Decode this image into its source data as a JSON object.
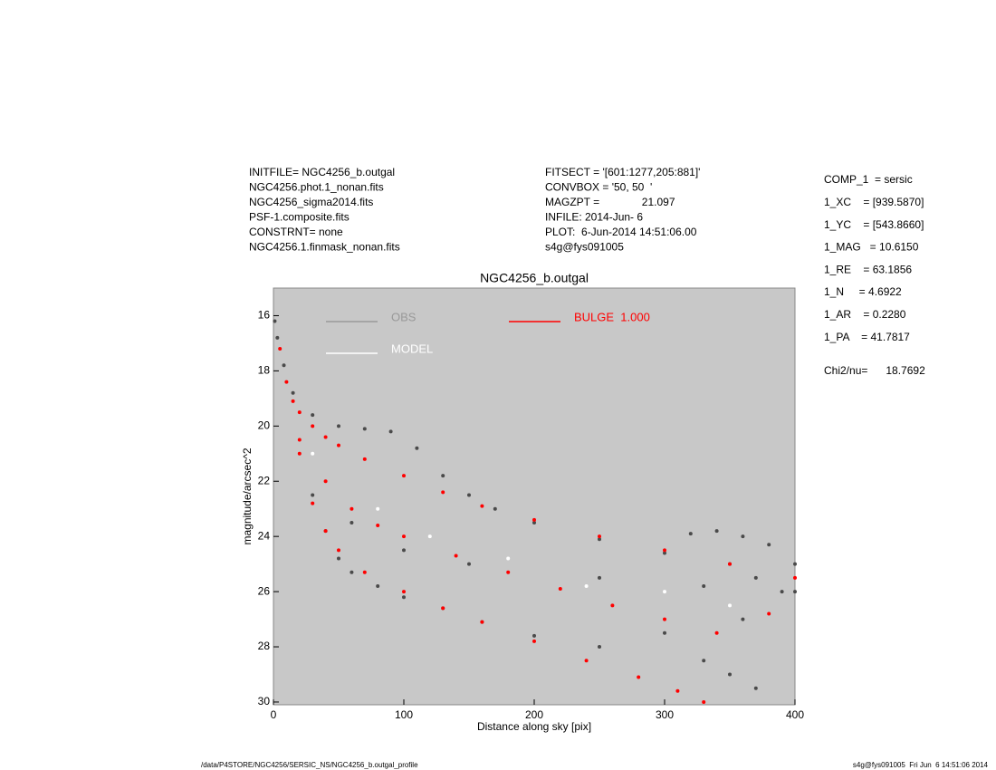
{
  "header": {
    "left_lines": [
      "INITFILE= NGC4256_b.outgal",
      "NGC4256.phot.1_nonan.fits",
      "NGC4256_sigma2014.fits",
      "PSF-1.composite.fits",
      "CONSTRNT= none",
      "NGC4256.1.finmask_nonan.fits"
    ],
    "middle_lines": [
      "FITSECT = '[601:1277,205:881]'",
      "CONVBOX = '50, 50  '",
      "MAGZPT =              21.097",
      "INFILE: 2014-Jun- 6",
      "PLOT:  6-Jun-2014 14:51:06.00",
      "s4g@fys091005"
    ],
    "right_lines": [
      "COMP_1  = sersic",
      "1_XC    = [939.5870]",
      "1_YC    = [543.8660]",
      "1_MAG   = 10.6150",
      "1_RE    = 63.1856",
      "1_N     = 4.6922",
      "1_AR    = 0.2280",
      "1_PA    = 41.7817"
    ],
    "chi2": "Chi2/nu=      18.7692"
  },
  "footer": {
    "left": "/data/P4STORE/NGC4256/SERSIC_NS/NGC4256_b.outgal_profile",
    "right": "s4g@fys091005  Fri Jun  6 14:51:06 2014"
  },
  "chart_data": {
    "type": "scatter",
    "title": "NGC4256_b.outgal",
    "xlabel": "Distance along sky [pix]",
    "ylabel": "magnitude/arcsec^2",
    "xlim": [
      0,
      400
    ],
    "ylim": [
      30.1,
      15
    ],
    "xticks": [
      0,
      100,
      200,
      300,
      400
    ],
    "yticks": [
      16,
      18,
      20,
      22,
      24,
      26,
      28,
      30
    ],
    "background": "#c8c8c8",
    "series": [
      {
        "name": "OBS",
        "color": "#4a4a4a",
        "x": [
          1,
          3,
          8,
          15,
          30,
          50,
          70,
          90,
          110,
          130,
          150,
          170,
          200,
          250,
          300,
          350,
          400,
          380,
          360,
          340,
          320,
          30,
          40,
          50,
          60,
          80,
          100,
          130,
          160,
          200,
          250,
          300,
          330,
          350,
          360,
          390,
          370,
          60,
          100,
          150,
          250,
          330,
          370,
          400
        ],
        "values": [
          16.2,
          16.8,
          17.8,
          18.8,
          19.6,
          20.0,
          20.1,
          20.2,
          20.8,
          21.8,
          22.5,
          23.0,
          23.5,
          24.1,
          24.6,
          25.0,
          25.0,
          24.3,
          24.0,
          23.8,
          23.9,
          22.5,
          23.8,
          24.8,
          25.3,
          25.8,
          26.2,
          26.6,
          27.1,
          27.6,
          28.0,
          27.5,
          28.5,
          29.0,
          27.0,
          26.0,
          29.5,
          23.5,
          24.5,
          25.0,
          25.5,
          25.8,
          25.5,
          26.0
        ]
      },
      {
        "name": "BULGE  1.000",
        "color": "#ff0000",
        "x": [
          5,
          10,
          15,
          20,
          30,
          40,
          50,
          70,
          100,
          130,
          160,
          200,
          250,
          300,
          350,
          400,
          20,
          40,
          60,
          80,
          100,
          140,
          180,
          220,
          260,
          300,
          340,
          380,
          20,
          30,
          40,
          50,
          70,
          100,
          130,
          160,
          200,
          240,
          280,
          310,
          330
        ],
        "values": [
          17.2,
          18.4,
          19.1,
          19.5,
          20.0,
          20.4,
          20.7,
          21.2,
          21.8,
          22.4,
          22.9,
          23.4,
          24.0,
          24.5,
          25.0,
          25.5,
          20.5,
          22.0,
          23.0,
          23.6,
          24.0,
          24.7,
          25.3,
          25.9,
          26.5,
          27.0,
          27.5,
          26.8,
          21.0,
          22.8,
          23.8,
          24.5,
          25.3,
          26.0,
          26.6,
          27.1,
          27.8,
          28.5,
          29.1,
          29.6,
          30.0
        ]
      },
      {
        "name": "MODEL",
        "color": "#ffffff",
        "x": [
          30,
          80,
          120,
          180,
          240,
          300,
          350
        ],
        "values": [
          21.0,
          23.0,
          24.0,
          24.8,
          25.8,
          26.0,
          26.5
        ]
      }
    ]
  }
}
